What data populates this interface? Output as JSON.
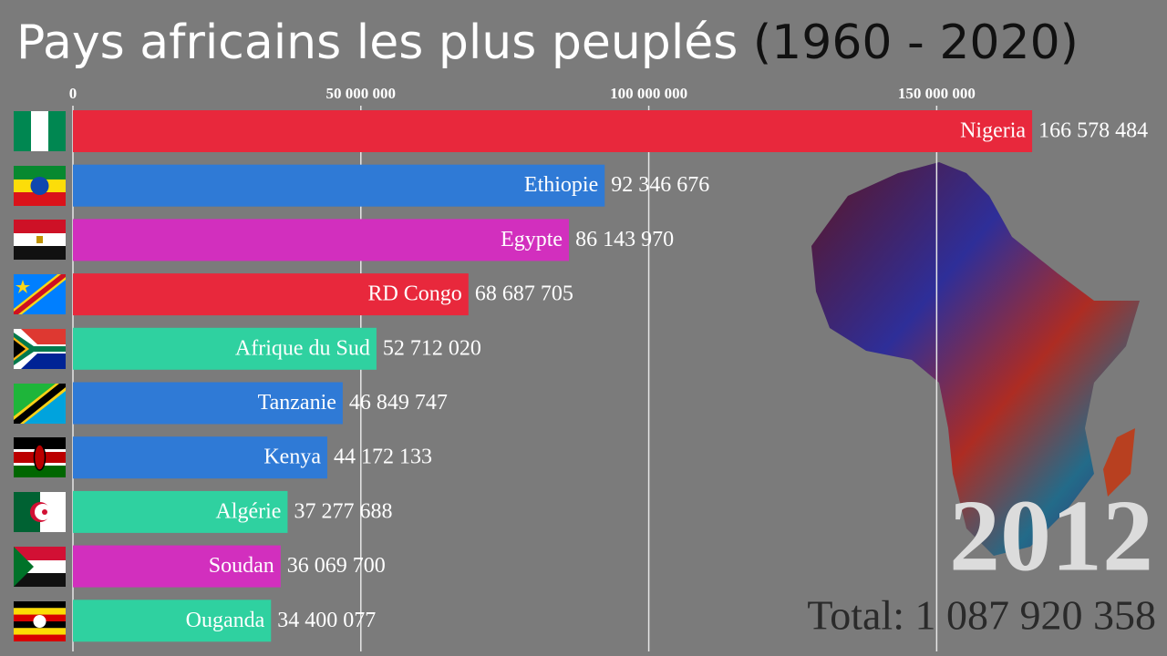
{
  "chart_data": {
    "type": "bar",
    "orientation": "horizontal",
    "title": "Pays africains les plus peuplés",
    "period": "(1960 - 2020)",
    "categories": [
      "Nigeria",
      "Ethiopie",
      "Egypte",
      "RD Congo",
      "Afrique du Sud",
      "Tanzanie",
      "Kenya",
      "Algérie",
      "Soudan",
      "Ouganda"
    ],
    "values": [
      166578484,
      92346676,
      86143970,
      68687705,
      52712020,
      46849747,
      44172133,
      37277688,
      36069700,
      34400077
    ],
    "value_labels": [
      "166 578 484",
      "92 346 676",
      "86 143 970",
      "68 687 705",
      "52 712 020",
      "46 849 747",
      "44 172 133",
      "37 277 688",
      "36 069 700",
      "34 400 077"
    ],
    "colors": [
      "#e8283c",
      "#2f7ad6",
      "#d22fbe",
      "#e8283c",
      "#2fd1a0",
      "#2f7ad6",
      "#2f7ad6",
      "#2fd1a0",
      "#d22fbe",
      "#2fd1a0"
    ],
    "xlim": [
      0,
      190000000
    ],
    "xticks": [
      0,
      {
        "value": 50000000,
        "label": "50 000 000"
      },
      {
        "value": 100000000,
        "label": "100 000 000"
      },
      {
        "value": 150000000,
        "label": "150 000 000"
      }
    ],
    "grid": true,
    "year": "2012",
    "total": "Total: 1 087 920 358"
  }
}
